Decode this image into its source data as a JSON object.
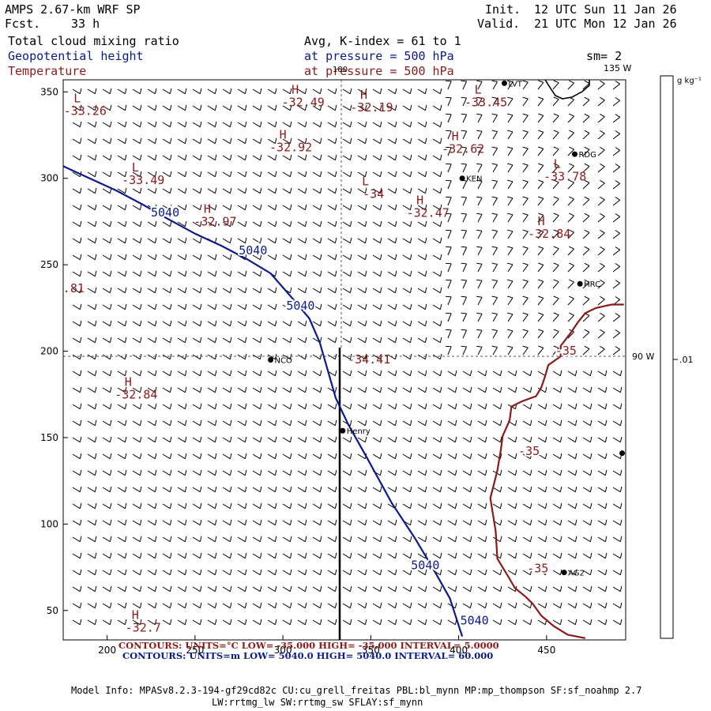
{
  "header": {
    "title": "AMPS 2.67-km WRF SP",
    "forecast_label": "Fcst.",
    "forecast_value": "33 h",
    "init_label": "Init.",
    "init_value": "12 UTC Sun 11 Jan 26",
    "valid_label": "Valid.",
    "valid_value": "21 UTC Mon 12 Jan 26"
  },
  "fields": {
    "field1": "Total cloud mixing ratio",
    "field2": "Geopotential height",
    "field3": "Temperature",
    "avg_line": "Avg, K-index =  61 to   1",
    "pressure1": "at pressure =  500 hPa",
    "pressure2": "at pressure =  500 hPa",
    "smoothing": "sm= 2"
  },
  "colors": {
    "height_contour": "#0b1a8c",
    "temp_contour": "#8b1a1a",
    "coast": "#000000"
  },
  "axes": {
    "x_ticks": [
      "200",
      "250",
      "300",
      "350",
      "400",
      "450"
    ],
    "x_values": [
      200,
      250,
      300,
      350,
      400,
      450
    ],
    "y_ticks": [
      "50",
      "100",
      "150",
      "200",
      "250",
      "300",
      "350"
    ],
    "y_values": [
      50,
      100,
      150,
      200,
      250,
      300,
      350
    ],
    "xlim": [
      175,
      495
    ],
    "ylim": [
      33,
      357
    ]
  },
  "geo_labels": {
    "lon_top_180": "180",
    "lon_top_135": "135 W",
    "lon_right_90": "90 W"
  },
  "colorbar": {
    "unit": "g kg⁻¹",
    "tick": ".01"
  },
  "stations": [
    {
      "name": "LVT",
      "x": 426,
      "y": 355
    },
    {
      "name": "RDG",
      "x": 466,
      "y": 314
    },
    {
      "name": "KEN",
      "x": 402,
      "y": 300
    },
    {
      "name": "HRC",
      "x": 469,
      "y": 239
    },
    {
      "name": "NCO",
      "x": 293,
      "y": 195
    },
    {
      "name": "Henry",
      "x": 334,
      "y": 154
    },
    {
      "name": "AG2",
      "x": 460,
      "y": 72
    },
    {
      "name": "",
      "x": 493,
      "y": 141
    }
  ],
  "pressure_centers": [
    {
      "type": "L",
      "value": "-33.26",
      "x": 183,
      "y": 344
    },
    {
      "type": "H",
      "value": "-32.49",
      "x": 307,
      "y": 349
    },
    {
      "type": "H",
      "value": "-32.19",
      "x": 346,
      "y": 346
    },
    {
      "type": "L",
      "value": "-33.45",
      "x": 411,
      "y": 349
    },
    {
      "type": "H",
      "value": "-32.92",
      "x": 300,
      "y": 323
    },
    {
      "type": "H",
      "value": "-32.62",
      "x": 398,
      "y": 322
    },
    {
      "type": "L",
      "value": "-33.49",
      "x": 216,
      "y": 304
    },
    {
      "type": "L",
      "value": "-33.78",
      "x": 456,
      "y": 306
    },
    {
      "type": "L",
      "value": "-34",
      "x": 347,
      "y": 296
    },
    {
      "type": "H",
      "value": "-32.47",
      "x": 378,
      "y": 285
    },
    {
      "type": "H",
      "value": "-32.97",
      "x": 257,
      "y": 280
    },
    {
      "type": "H",
      "value": "-32.84",
      "x": 447,
      "y": 273
    },
    {
      "type": "H",
      "value": "-32.84",
      "x": 212,
      "y": 180
    },
    {
      "type": "H",
      "value": "-32.7",
      "x": 216,
      "y": 45
    }
  ],
  "point_values": [
    {
      "value": "-34.41",
      "x": 349,
      "y": 193
    },
    {
      "value": ".81",
      "x": 181,
      "y": 234
    }
  ],
  "height_contour": {
    "label": "5040",
    "points": [
      [
        175,
        307
      ],
      [
        190,
        300
      ],
      [
        205,
        293
      ],
      [
        220,
        285
      ],
      [
        232,
        278
      ],
      [
        250,
        268
      ],
      [
        265,
        261
      ],
      [
        280,
        253
      ],
      [
        293,
        245
      ],
      [
        305,
        231
      ],
      [
        315,
        219
      ],
      [
        321,
        205
      ],
      [
        330,
        173
      ],
      [
        337,
        158
      ],
      [
        348,
        138
      ],
      [
        362,
        112
      ],
      [
        375,
        92
      ],
      [
        385,
        75
      ],
      [
        395,
        57
      ],
      [
        402,
        35
      ]
    ],
    "label_positions": [
      [
        233,
        278
      ],
      [
        283,
        256
      ],
      [
        310,
        224
      ],
      [
        381,
        74
      ],
      [
        409,
        42
      ]
    ]
  },
  "temp_contour": {
    "label": "-35",
    "points": [
      [
        494,
        227
      ],
      [
        487,
        227
      ],
      [
        478,
        225
      ],
      [
        472,
        222
      ],
      [
        468,
        217
      ],
      [
        464,
        211
      ],
      [
        458,
        203
      ],
      [
        458,
        197
      ],
      [
        451,
        192
      ],
      [
        449,
        185
      ],
      [
        447,
        179
      ],
      [
        444,
        174
      ],
      [
        436,
        171
      ],
      [
        430,
        168
      ],
      [
        429,
        160
      ],
      [
        425,
        151
      ],
      [
        424,
        143
      ],
      [
        422,
        131
      ],
      [
        418,
        115
      ],
      [
        421,
        96
      ],
      [
        422,
        80
      ],
      [
        428,
        70
      ],
      [
        432,
        63
      ],
      [
        438,
        58
      ],
      [
        442,
        54
      ],
      [
        447,
        47
      ],
      [
        454,
        41
      ],
      [
        462,
        36
      ],
      [
        472,
        34
      ]
    ],
    "label_positions": [
      [
        461,
        198
      ],
      [
        440,
        140
      ],
      [
        445,
        72
      ]
    ]
  },
  "legend": {
    "line1": "CONTOURS:  UNITS=°C  LOW= -35.000        HIGH= -35.000        INTERVAL=   5.0000",
    "line2": "CONTOURS:  UNITS=m  LOW=  5040.0         HIGH=  5040.0        INTERVAL=   60.000"
  },
  "model_info": {
    "line1": "Model Info: MPASv8.2.3-194-gf29cd82c CU:cu_grell_freitas PBL:bl_mynn MP:mp_thompson SF:sf_noahmp 2.7",
    "line2": "LW:rrtmg_lw SW:rrtmg_sw SFLAY:sf_mynn"
  }
}
